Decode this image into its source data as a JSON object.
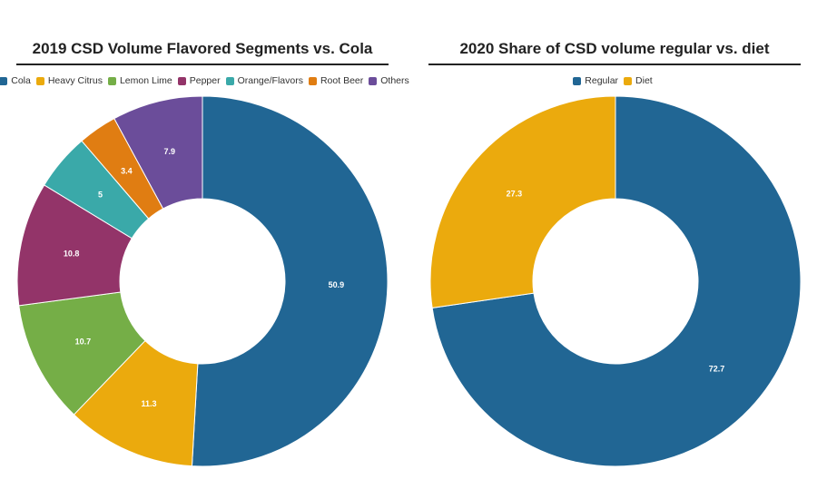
{
  "chart_data": [
    {
      "type": "pie",
      "variant": "donut",
      "title": "2019 CSD Volume Flavored Segments vs. Cola",
      "legend_position": "top",
      "categories": [
        "Cola",
        "Heavy Citrus",
        "Lemon Lime",
        "Pepper",
        "Orange/Flavors",
        "Root Beer",
        "Others"
      ],
      "values": [
        50.9,
        11.3,
        10.7,
        10.8,
        5,
        3.4,
        7.9
      ],
      "labels": [
        "50.9",
        "11.3",
        "10.7",
        "10.8",
        "5",
        "3.4",
        "7.9"
      ],
      "colors": [
        "#216694",
        "#EBAA0D",
        "#75AE47",
        "#933469",
        "#3AA9A9",
        "#E07D12",
        "#6B4D9A"
      ]
    },
    {
      "type": "pie",
      "variant": "donut",
      "title": "2020 Share of CSD volume regular vs. diet",
      "legend_position": "top",
      "categories": [
        "Regular",
        "Diet"
      ],
      "values": [
        72.7,
        27.3
      ],
      "labels": [
        "72.7",
        "27.3"
      ],
      "colors": [
        "#216694",
        "#EBAA0D"
      ]
    }
  ]
}
